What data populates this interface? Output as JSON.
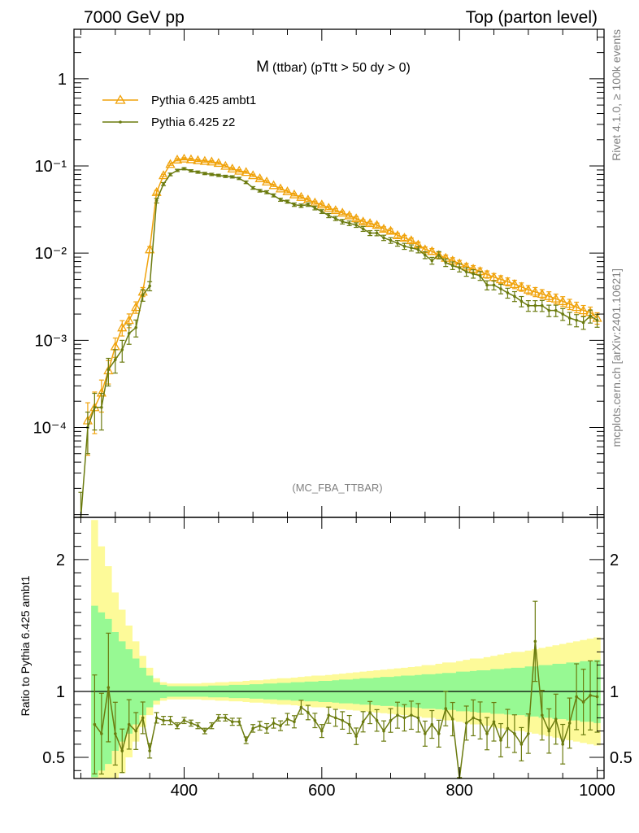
{
  "header": {
    "left": "7000 GeV pp",
    "right": "Top (parton level)"
  },
  "side_labels": {
    "top": "Rivet 4.1.0, ≥ 100k events",
    "bottom": "mcplots.cern.ch [arXiv:2401.10621]"
  },
  "chart_data": {
    "type": "line",
    "title": "M (ttbar) (pTtt > 50 dy > 0)",
    "title_main": "M",
    "title_sub": "(ttbar) (pTtt > 50 dy > 0)",
    "watermark": "(MC_FBA_TTBAR)",
    "xlim": [
      240,
      1010
    ],
    "xticks": [
      "400",
      "600",
      "800",
      "1000"
    ],
    "xtick_values": [
      400,
      600,
      800,
      1000
    ],
    "main_panel": {
      "yscale": "log",
      "ylim": [
        9.3e-06,
        3.7
      ],
      "yticks": [
        "10⁻⁴",
        "10⁻³",
        "10⁻²",
        "10⁻¹",
        "1"
      ],
      "ytick_values": [
        0.0001,
        0.001,
        0.01,
        0.1,
        1
      ],
      "legend": [
        "Pythia 6.425 ambt1",
        "Pythia 6.425 z2"
      ],
      "legend_position": "top-left",
      "series": [
        {
          "name": "Pythia 6.425 ambt1",
          "color": "#f0a20a",
          "marker": "triangle-open",
          "x": [
            260,
            270,
            280,
            290,
            300,
            310,
            320,
            330,
            340,
            350,
            360,
            370,
            380,
            390,
            400,
            410,
            420,
            430,
            440,
            450,
            460,
            470,
            480,
            490,
            500,
            510,
            520,
            530,
            540,
            550,
            560,
            570,
            580,
            590,
            600,
            610,
            620,
            630,
            640,
            650,
            660,
            670,
            680,
            690,
            700,
            710,
            720,
            730,
            740,
            750,
            760,
            770,
            780,
            790,
            800,
            810,
            820,
            830,
            840,
            850,
            860,
            870,
            880,
            890,
            900,
            910,
            920,
            930,
            940,
            950,
            960,
            970,
            980,
            990,
            1000
          ],
          "y": [
            0.00012,
            0.00017,
            0.00025,
            0.00045,
            0.00085,
            0.0014,
            0.0017,
            0.0024,
            0.0036,
            0.011,
            0.05,
            0.078,
            0.105,
            0.118,
            0.121,
            0.119,
            0.116,
            0.114,
            0.112,
            0.108,
            0.1,
            0.093,
            0.088,
            0.085,
            0.078,
            0.072,
            0.066,
            0.06,
            0.055,
            0.051,
            0.047,
            0.044,
            0.041,
            0.038,
            0.036,
            0.033,
            0.031,
            0.029,
            0.027,
            0.025,
            0.023,
            0.022,
            0.021,
            0.019,
            0.018,
            0.016,
            0.015,
            0.014,
            0.0125,
            0.011,
            0.0105,
            0.0095,
            0.0088,
            0.0082,
            0.0076,
            0.007,
            0.0066,
            0.0062,
            0.0057,
            0.0053,
            0.005,
            0.0047,
            0.0044,
            0.0041,
            0.0038,
            0.0036,
            0.0034,
            0.0032,
            0.003,
            0.0028,
            0.0026,
            0.0024,
            0.0022,
            0.0021,
            0.0018
          ],
          "err_frac": [
            0.6,
            0.5,
            0.4,
            0.3,
            0.25,
            0.2,
            0.18,
            0.15,
            0.12,
            0.08,
            0.05,
            0.03,
            0.03,
            0.03,
            0.03,
            0.03,
            0.03,
            0.03,
            0.03,
            0.03,
            0.03,
            0.03,
            0.03,
            0.03,
            0.03,
            0.03,
            0.03,
            0.03,
            0.035,
            0.035,
            0.035,
            0.035,
            0.04,
            0.04,
            0.04,
            0.04,
            0.045,
            0.045,
            0.045,
            0.05,
            0.05,
            0.05,
            0.055,
            0.055,
            0.06,
            0.06,
            0.065,
            0.065,
            0.07,
            0.07,
            0.075,
            0.075,
            0.08,
            0.08,
            0.085,
            0.085,
            0.09,
            0.09,
            0.095,
            0.1,
            0.1,
            0.105,
            0.11,
            0.11,
            0.115,
            0.12,
            0.12,
            0.125,
            0.13,
            0.13,
            0.135,
            0.14,
            0.14,
            0.145,
            0.15
          ]
        },
        {
          "name": "Pythia 6.425 z2",
          "color": "#6b7b0f",
          "marker": "dot",
          "x": [
            250,
            260,
            270,
            280,
            290,
            300,
            310,
            320,
            330,
            340,
            350,
            360,
            370,
            380,
            390,
            400,
            410,
            420,
            430,
            440,
            450,
            460,
            470,
            480,
            490,
            500,
            510,
            520,
            530,
            540,
            550,
            560,
            570,
            580,
            590,
            600,
            610,
            620,
            630,
            640,
            650,
            660,
            670,
            680,
            690,
            700,
            710,
            720,
            730,
            740,
            750,
            760,
            770,
            780,
            790,
            800,
            810,
            820,
            830,
            840,
            850,
            860,
            870,
            880,
            890,
            900,
            910,
            920,
            930,
            940,
            950,
            960,
            970,
            980,
            990,
            1000
          ],
          "y": [
            9e-06,
            0.0001,
            0.00017,
            0.00017,
            0.00046,
            0.0006,
            0.00078,
            0.0012,
            0.0014,
            0.0033,
            0.0042,
            0.04,
            0.062,
            0.08,
            0.089,
            0.093,
            0.088,
            0.085,
            0.082,
            0.08,
            0.078,
            0.076,
            0.075,
            0.072,
            0.065,
            0.056,
            0.052,
            0.05,
            0.046,
            0.041,
            0.039,
            0.036,
            0.035,
            0.036,
            0.033,
            0.03,
            0.027,
            0.025,
            0.023,
            0.022,
            0.021,
            0.019,
            0.017,
            0.017,
            0.015,
            0.014,
            0.013,
            0.012,
            0.0115,
            0.011,
            0.0095,
            0.0082,
            0.0095,
            0.0078,
            0.0072,
            0.0068,
            0.0061,
            0.0058,
            0.0055,
            0.0043,
            0.0043,
            0.0039,
            0.0035,
            0.0032,
            0.0028,
            0.0025,
            0.0025,
            0.0025,
            0.0022,
            0.0022,
            0.002,
            0.0018,
            0.0017,
            0.0016,
            0.0019,
            0.0017
          ],
          "err_frac": [
            1.0,
            0.5,
            0.45,
            0.45,
            0.35,
            0.3,
            0.28,
            0.25,
            0.22,
            0.15,
            0.12,
            0.06,
            0.04,
            0.035,
            0.03,
            0.03,
            0.03,
            0.03,
            0.03,
            0.03,
            0.03,
            0.03,
            0.03,
            0.03,
            0.035,
            0.035,
            0.035,
            0.04,
            0.04,
            0.04,
            0.04,
            0.045,
            0.045,
            0.045,
            0.05,
            0.05,
            0.055,
            0.055,
            0.06,
            0.06,
            0.06,
            0.065,
            0.065,
            0.07,
            0.07,
            0.075,
            0.075,
            0.08,
            0.08,
            0.085,
            0.09,
            0.09,
            0.095,
            0.1,
            0.1,
            0.105,
            0.11,
            0.11,
            0.115,
            0.12,
            0.12,
            0.125,
            0.13,
            0.13,
            0.135,
            0.14,
            0.14,
            0.145,
            0.15,
            0.15,
            0.155,
            0.16,
            0.16,
            0.165,
            0.17,
            0.17
          ]
        }
      ]
    },
    "ratio_panel": {
      "ylabel": "Ratio to Pythia 6.425 ambt1",
      "ylim": [
        0.34,
        2.32
      ],
      "yticks": [
        "0.5",
        "1",
        "2"
      ],
      "ytick_values": [
        0.5,
        1,
        2
      ],
      "reference_line": 1,
      "band_x": [
        270,
        280,
        290,
        300,
        310,
        320,
        330,
        340,
        350,
        360,
        370,
        380,
        390,
        400,
        410,
        420,
        430,
        440,
        450,
        460,
        470,
        480,
        490,
        500,
        510,
        520,
        530,
        540,
        550,
        560,
        570,
        580,
        590,
        600,
        610,
        620,
        630,
        640,
        650,
        660,
        670,
        680,
        690,
        700,
        710,
        720,
        730,
        740,
        750,
        760,
        770,
        780,
        790,
        800,
        810,
        820,
        830,
        840,
        850,
        860,
        870,
        880,
        890,
        900,
        910,
        920,
        930,
        940,
        950,
        960,
        970,
        980,
        990,
        1000
      ],
      "band_inner": [
        0.65,
        0.6,
        0.55,
        0.45,
        0.38,
        0.32,
        0.25,
        0.18,
        0.12,
        0.07,
        0.05,
        0.04,
        0.04,
        0.04,
        0.04,
        0.04,
        0.04,
        0.045,
        0.045,
        0.045,
        0.05,
        0.05,
        0.05,
        0.055,
        0.055,
        0.06,
        0.06,
        0.065,
        0.065,
        0.07,
        0.07,
        0.075,
        0.075,
        0.08,
        0.08,
        0.085,
        0.09,
        0.09,
        0.095,
        0.1,
        0.1,
        0.105,
        0.11,
        0.11,
        0.115,
        0.12,
        0.12,
        0.125,
        0.13,
        0.13,
        0.135,
        0.14,
        0.14,
        0.15,
        0.15,
        0.155,
        0.16,
        0.16,
        0.17,
        0.17,
        0.175,
        0.18,
        0.18,
        0.19,
        0.19,
        0.2,
        0.2,
        0.21,
        0.21,
        0.22,
        0.22,
        0.23,
        0.23,
        0.24
      ],
      "band_outer": [
        1.3,
        1.1,
        0.95,
        0.75,
        0.62,
        0.5,
        0.38,
        0.27,
        0.18,
        0.1,
        0.07,
        0.06,
        0.06,
        0.06,
        0.06,
        0.06,
        0.065,
        0.065,
        0.07,
        0.07,
        0.075,
        0.075,
        0.08,
        0.085,
        0.085,
        0.09,
        0.095,
        0.1,
        0.1,
        0.105,
        0.11,
        0.115,
        0.12,
        0.12,
        0.125,
        0.13,
        0.135,
        0.14,
        0.145,
        0.15,
        0.155,
        0.16,
        0.165,
        0.17,
        0.175,
        0.18,
        0.185,
        0.19,
        0.2,
        0.2,
        0.21,
        0.22,
        0.22,
        0.23,
        0.24,
        0.25,
        0.25,
        0.26,
        0.27,
        0.28,
        0.29,
        0.3,
        0.3,
        0.31,
        0.32,
        0.33,
        0.34,
        0.35,
        0.36,
        0.37,
        0.38,
        0.39,
        0.4,
        0.41
      ],
      "ratio_series": {
        "name": "Pythia 6.425 z2",
        "x": [
          270,
          280,
          290,
          300,
          310,
          320,
          330,
          340,
          350,
          360,
          370,
          380,
          390,
          400,
          410,
          420,
          430,
          440,
          450,
          460,
          470,
          480,
          490,
          500,
          510,
          520,
          530,
          540,
          550,
          560,
          570,
          580,
          590,
          600,
          610,
          620,
          630,
          640,
          650,
          660,
          670,
          680,
          690,
          700,
          710,
          720,
          730,
          740,
          750,
          760,
          770,
          780,
          790,
          800,
          810,
          820,
          830,
          840,
          850,
          860,
          870,
          880,
          890,
          900,
          910,
          920,
          930,
          940,
          950,
          960,
          970,
          980,
          990,
          1000
        ],
        "y": [
          0.75,
          0.68,
          1.03,
          0.68,
          0.55,
          0.75,
          0.7,
          0.8,
          0.55,
          0.8,
          0.78,
          0.78,
          0.74,
          0.78,
          0.76,
          0.74,
          0.7,
          0.74,
          0.8,
          0.8,
          0.77,
          0.77,
          0.63,
          0.72,
          0.74,
          0.72,
          0.76,
          0.74,
          0.79,
          0.77,
          0.88,
          0.84,
          0.78,
          0.7,
          0.82,
          0.8,
          0.78,
          0.75,
          0.66,
          0.77,
          0.84,
          0.78,
          0.7,
          0.78,
          0.82,
          0.8,
          0.82,
          0.8,
          0.68,
          0.75,
          0.68,
          0.87,
          0.79,
          0.3,
          0.76,
          0.8,
          0.78,
          0.68,
          0.77,
          0.63,
          0.72,
          0.68,
          0.6,
          0.68,
          1.38,
          0.82,
          0.7,
          0.79,
          0.6,
          0.76,
          0.96,
          0.92,
          0.97,
          0.96
        ],
        "err_frac": [
          0.5,
          0.45,
          0.4,
          0.35,
          0.3,
          0.25,
          0.2,
          0.15,
          0.1,
          0.05,
          0.04,
          0.04,
          0.03,
          0.03,
          0.03,
          0.03,
          0.03,
          0.03,
          0.03,
          0.03,
          0.035,
          0.035,
          0.04,
          0.04,
          0.045,
          0.05,
          0.05,
          0.05,
          0.055,
          0.06,
          0.06,
          0.065,
          0.07,
          0.07,
          0.075,
          0.08,
          0.085,
          0.09,
          0.095,
          0.1,
          0.1,
          0.105,
          0.11,
          0.115,
          0.12,
          0.125,
          0.13,
          0.135,
          0.14,
          0.14,
          0.15,
          0.15,
          0.16,
          0.16,
          0.17,
          0.17,
          0.18,
          0.18,
          0.19,
          0.2,
          0.2,
          0.21,
          0.21,
          0.22,
          0.22,
          0.23,
          0.24,
          0.24,
          0.25,
          0.25,
          0.26,
          0.27,
          0.27,
          0.28
        ]
      }
    }
  }
}
